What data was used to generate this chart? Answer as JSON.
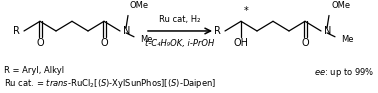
{
  "figsize": [
    3.78,
    0.93
  ],
  "dpi": 100,
  "bg_color": "#ffffff",
  "reaction_above": "Ru cat, H₂",
  "reaction_below": "t-C₄H₉OK, i-PrOH",
  "footnote1": "R = Aryl, Alkyl",
  "ee_text": "ee: up to 99%",
  "font_size_struct": 7.0,
  "font_size_label": 6.5,
  "font_size_small": 6.0
}
